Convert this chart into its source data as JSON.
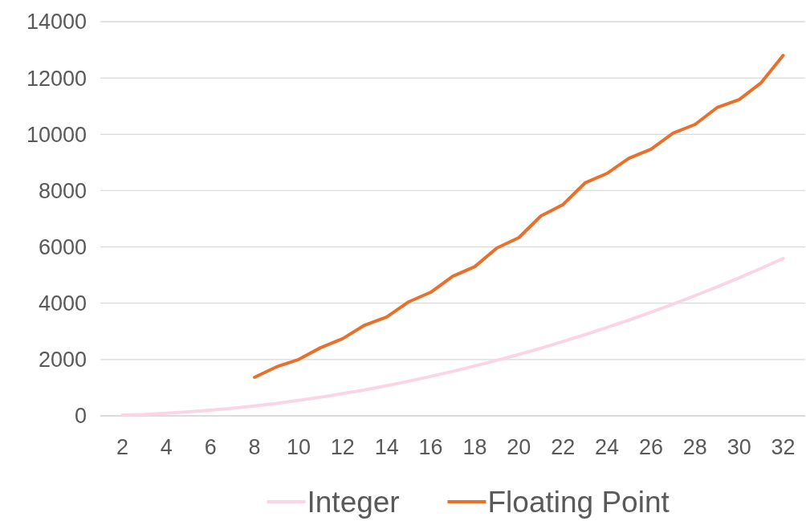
{
  "chart_data": {
    "type": "line",
    "x": [
      2,
      3,
      4,
      5,
      6,
      7,
      8,
      9,
      10,
      11,
      12,
      13,
      14,
      15,
      16,
      17,
      18,
      19,
      20,
      21,
      22,
      23,
      24,
      25,
      26,
      27,
      28,
      29,
      30,
      31,
      32
    ],
    "series": [
      {
        "name": "Integer",
        "color": "#f9d5e5",
        "values": [
          30,
          50,
          90,
          140,
          200,
          270,
          350,
          440,
          550,
          660,
          790,
          920,
          1070,
          1230,
          1400,
          1580,
          1770,
          1970,
          2180,
          2400,
          2640,
          2880,
          3140,
          3400,
          3680,
          3970,
          4270,
          4580,
          4900,
          5240,
          5590
        ]
      },
      {
        "name": "Floating Point",
        "color": "#e8702a",
        "values": [
          null,
          null,
          null,
          null,
          null,
          null,
          1370,
          1740,
          2000,
          2420,
          2740,
          3220,
          3510,
          4050,
          4390,
          4960,
          5300,
          5960,
          6330,
          7100,
          7500,
          8270,
          8610,
          9150,
          9470,
          10040,
          10350,
          10950,
          11230,
          11830,
          12800
        ]
      }
    ],
    "xlim": [
      1,
      33
    ],
    "xticks": [
      2,
      4,
      6,
      8,
      10,
      12,
      14,
      16,
      18,
      20,
      22,
      24,
      26,
      28,
      30,
      32
    ],
    "ylim": [
      0,
      14000
    ],
    "yticks": [
      0,
      2000,
      4000,
      6000,
      8000,
      10000,
      12000,
      14000
    ],
    "grid": "y",
    "legend": "bottom",
    "marker": "none",
    "line_style": "solid"
  }
}
